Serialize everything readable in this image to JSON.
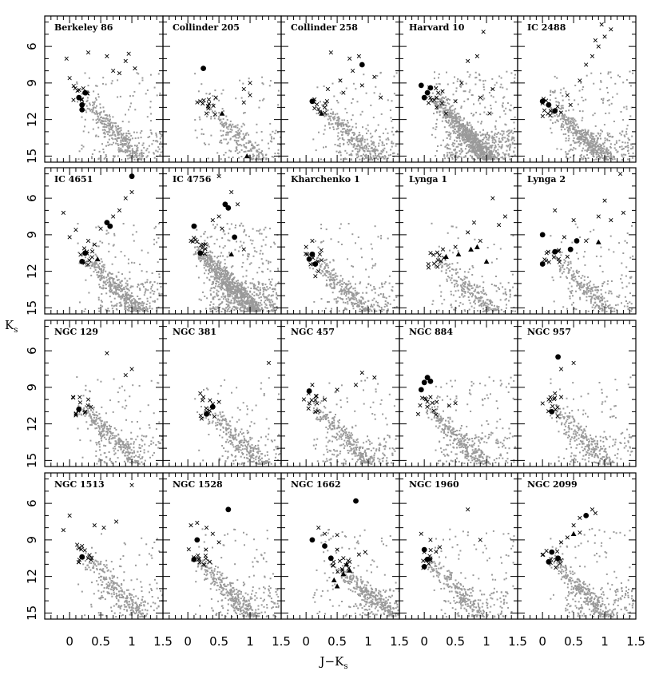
{
  "figure": {
    "xlabel": "J−K",
    "xlabel_sub": "s",
    "ylabel": "K",
    "ylabel_sub": "s"
  },
  "chart_data": {
    "type": "scatter",
    "layout": {
      "rows": 4,
      "cols": 5
    },
    "xlim": [
      -0.4,
      1.5
    ],
    "ylim": [
      15.5,
      3.5
    ],
    "x_ticks": [
      0,
      0.5,
      1,
      1.5
    ],
    "x_tick_labels": [
      "0",
      "0.5",
      "1",
      "1.5"
    ],
    "y_ticks": [
      6,
      9,
      12,
      15
    ],
    "y_tick_labels": [
      "6",
      "9",
      "12",
      "15"
    ],
    "marker_legend": {
      "field": "gray dots",
      "candidates": "crosses",
      "members": "filled circles",
      "giants": "triangles"
    },
    "colors": {
      "field": "#9a9a9a",
      "members": "#000000"
    },
    "panels": [
      {
        "title": "Berkeley 86",
        "field_density": 0.5,
        "turnoff": [
          0.2,
          10.0
        ],
        "members": [
          [
            0.15,
            10.2
          ],
          [
            0.2,
            10.8
          ],
          [
            0.25,
            9.8
          ],
          [
            0.2,
            11.2
          ]
        ],
        "giants": [],
        "crosses": [
          [
            -0.05,
            7.0
          ],
          [
            0.3,
            6.5
          ],
          [
            0.6,
            6.8
          ],
          [
            0.7,
            8.0
          ],
          [
            0.8,
            8.2
          ],
          [
            0.9,
            7.2
          ],
          [
            0.95,
            6.6
          ],
          [
            1.05,
            7.8
          ],
          [
            0.0,
            8.6
          ]
        ]
      },
      {
        "title": "Collinder 205",
        "field_density": 0.35,
        "turnoff": [
          0.3,
          10.8
        ],
        "members": [
          [
            0.25,
            7.8
          ]
        ],
        "giants": [
          [
            0.55,
            11.5
          ],
          [
            0.95,
            15.0
          ]
        ],
        "crosses": [
          [
            0.2,
            10.5
          ],
          [
            0.3,
            11.5
          ],
          [
            0.45,
            10.2
          ],
          [
            0.9,
            9.5
          ],
          [
            1.0,
            10.0
          ],
          [
            1.0,
            9.0
          ],
          [
            0.9,
            10.6
          ]
        ]
      },
      {
        "title": "Collinder 258",
        "field_density": 0.5,
        "turnoff": [
          0.25,
          11.0
        ],
        "members": [
          [
            0.1,
            10.5
          ],
          [
            0.9,
            7.5
          ]
        ],
        "giants": [
          [
            0.25,
            11.5
          ]
        ],
        "crosses": [
          [
            0.4,
            6.5
          ],
          [
            0.55,
            8.8
          ],
          [
            0.6,
            9.8
          ],
          [
            0.7,
            7.0
          ],
          [
            0.75,
            8.0
          ],
          [
            0.85,
            6.8
          ],
          [
            0.9,
            9.2
          ],
          [
            1.1,
            8.5
          ],
          [
            1.2,
            10.2
          ],
          [
            0.35,
            9.5
          ]
        ]
      },
      {
        "title": "Harvard 10",
        "field_density": 1.3,
        "turnoff": [
          0.15,
          10.0
        ],
        "members": [
          [
            -0.05,
            9.2
          ],
          [
            0.05,
            9.8
          ],
          [
            0.1,
            9.4
          ],
          [
            0.0,
            10.2
          ]
        ],
        "giants": [],
        "crosses": [
          [
            0.2,
            11.0
          ],
          [
            0.35,
            11.5
          ],
          [
            0.5,
            10.5
          ],
          [
            0.6,
            9.0
          ],
          [
            0.85,
            6.8
          ],
          [
            0.95,
            4.8
          ],
          [
            1.05,
            11.5
          ],
          [
            0.7,
            7.2
          ],
          [
            0.9,
            10.2
          ],
          [
            1.1,
            9.5
          ]
        ]
      },
      {
        "title": "IC 2488",
        "field_density": 0.7,
        "turnoff": [
          0.15,
          11.0
        ],
        "members": [
          [
            0.0,
            10.5
          ],
          [
            0.1,
            10.8
          ],
          [
            0.2,
            11.3
          ]
        ],
        "giants": [],
        "crosses": [
          [
            0.4,
            10.0
          ],
          [
            0.45,
            10.8
          ],
          [
            0.6,
            8.8
          ],
          [
            0.7,
            7.5
          ],
          [
            0.8,
            6.8
          ],
          [
            0.85,
            5.5
          ],
          [
            0.9,
            6.0
          ],
          [
            1.0,
            5.2
          ],
          [
            1.1,
            4.6
          ],
          [
            0.95,
            4.2
          ]
        ]
      },
      {
        "title": "IC 4651",
        "field_density": 0.6,
        "turnoff": [
          0.25,
          10.8
        ],
        "members": [
          [
            0.2,
            11.2
          ],
          [
            0.25,
            10.5
          ],
          [
            0.6,
            8.0
          ],
          [
            0.65,
            8.3
          ],
          [
            1.0,
            4.2
          ]
        ],
        "giants": [
          [
            0.45,
            11.0
          ]
        ],
        "crosses": [
          [
            -0.1,
            7.2
          ],
          [
            0.0,
            9.2
          ],
          [
            0.1,
            8.6
          ],
          [
            0.4,
            9.8
          ],
          [
            0.5,
            8.5
          ],
          [
            0.7,
            7.5
          ],
          [
            0.8,
            7.0
          ],
          [
            0.9,
            6.0
          ],
          [
            1.0,
            5.5
          ],
          [
            0.3,
            9.5
          ]
        ]
      },
      {
        "title": "IC 4756",
        "field_density": 1.3,
        "turnoff": [
          0.15,
          10.0
        ],
        "members": [
          [
            0.1,
            8.3
          ],
          [
            0.6,
            6.5
          ],
          [
            0.65,
            6.8
          ],
          [
            0.75,
            9.2
          ],
          [
            0.2,
            10.5
          ]
        ],
        "giants": [
          [
            0.7,
            10.6
          ]
        ],
        "crosses": [
          [
            0.05,
            9.5
          ],
          [
            0.25,
            9.8
          ],
          [
            0.4,
            7.8
          ],
          [
            0.5,
            7.5
          ],
          [
            0.55,
            8.5
          ],
          [
            0.7,
            5.5
          ],
          [
            0.8,
            6.5
          ],
          [
            0.5,
            4.2
          ],
          [
            0.9,
            10.2
          ]
        ]
      },
      {
        "title": "Kharchenko 1",
        "field_density": 0.45,
        "turnoff": [
          0.1,
          10.8
        ],
        "members": [
          [
            0.05,
            11.0
          ],
          [
            0.1,
            10.6
          ],
          [
            0.15,
            11.4
          ]
        ],
        "giants": [],
        "crosses": [
          [
            0.0,
            10.0
          ],
          [
            0.1,
            9.5
          ],
          [
            0.2,
            12.0
          ],
          [
            0.15,
            12.4
          ]
        ]
      },
      {
        "title": "Lynga 1",
        "field_density": 0.35,
        "turnoff": [
          0.2,
          11.0
        ],
        "members": [],
        "giants": [
          [
            0.35,
            10.8
          ],
          [
            0.55,
            10.6
          ],
          [
            0.75,
            10.2
          ],
          [
            0.85,
            10.0
          ],
          [
            1.0,
            11.2
          ]
        ],
        "crosses": [
          [
            0.1,
            10.5
          ],
          [
            0.3,
            10.2
          ],
          [
            0.5,
            10.0
          ],
          [
            0.7,
            8.8
          ],
          [
            0.8,
            8.0
          ],
          [
            0.9,
            9.5
          ],
          [
            1.1,
            6.0
          ],
          [
            1.2,
            8.2
          ],
          [
            1.3,
            7.5
          ]
        ]
      },
      {
        "title": "Lynga 2",
        "field_density": 0.35,
        "turnoff": [
          0.15,
          10.5
        ],
        "members": [
          [
            0.0,
            11.4
          ],
          [
            0.0,
            9.0
          ],
          [
            0.2,
            10.4
          ],
          [
            0.45,
            10.2
          ],
          [
            0.55,
            9.5
          ]
        ],
        "giants": [
          [
            0.9,
            9.6
          ]
        ],
        "crosses": [
          [
            0.2,
            7.0
          ],
          [
            0.35,
            9.2
          ],
          [
            0.5,
            7.8
          ],
          [
            0.7,
            9.5
          ],
          [
            0.9,
            7.5
          ],
          [
            1.0,
            6.2
          ],
          [
            1.1,
            7.8
          ],
          [
            1.3,
            7.2
          ],
          [
            1.25,
            4.0
          ],
          [
            0.4,
            10.8
          ]
        ]
      },
      {
        "title": "NGC 129",
        "field_density": 0.45,
        "turnoff": [
          0.2,
          10.5
        ],
        "members": [
          [
            0.15,
            10.8
          ]
        ],
        "giants": [],
        "crosses": [
          [
            0.3,
            10.0
          ],
          [
            0.6,
            6.2
          ],
          [
            0.9,
            8.0
          ],
          [
            1.0,
            7.5
          ],
          [
            0.25,
            11.0
          ],
          [
            0.1,
            11.3
          ]
        ]
      },
      {
        "title": "NGC 381",
        "field_density": 0.4,
        "turnoff": [
          0.3,
          10.8
        ],
        "members": [
          [
            0.3,
            11.2
          ],
          [
            0.4,
            10.6
          ]
        ],
        "giants": [],
        "crosses": [
          [
            0.25,
            9.8
          ],
          [
            0.2,
            9.5
          ],
          [
            0.5,
            10.2
          ],
          [
            1.3,
            7.0
          ]
        ]
      },
      {
        "title": "NGC 457",
        "field_density": 0.45,
        "turnoff": [
          0.1,
          10.2
        ],
        "members": [
          [
            0.05,
            9.3
          ]
        ],
        "giants": [],
        "crosses": [
          [
            0.1,
            8.8
          ],
          [
            0.3,
            10.0
          ],
          [
            0.5,
            9.2
          ],
          [
            0.8,
            8.8
          ],
          [
            0.9,
            7.8
          ],
          [
            1.1,
            8.2
          ],
          [
            0.15,
            11.0
          ]
        ]
      },
      {
        "title": "NGC 884",
        "field_density": 0.5,
        "turnoff": [
          0.05,
          10.5
        ],
        "members": [
          [
            -0.05,
            9.2
          ],
          [
            0.05,
            8.2
          ],
          [
            0.1,
            8.5
          ],
          [
            0.0,
            8.6
          ]
        ],
        "giants": [],
        "crosses": [
          [
            0.1,
            9.8
          ],
          [
            0.2,
            10.2
          ],
          [
            0.4,
            10.5
          ],
          [
            0.5,
            10.3
          ]
        ]
      },
      {
        "title": "NGC 957",
        "field_density": 0.4,
        "turnoff": [
          0.15,
          10.6
        ],
        "members": [
          [
            0.25,
            6.5
          ],
          [
            0.15,
            11.0
          ]
        ],
        "giants": [],
        "crosses": [
          [
            0.3,
            7.5
          ],
          [
            0.5,
            7.0
          ],
          [
            0.3,
            9.8
          ],
          [
            0.2,
            9.5
          ],
          [
            0.1,
            10.0
          ]
        ]
      },
      {
        "title": "NGC 1513",
        "field_density": 0.4,
        "turnoff": [
          0.25,
          10.2
        ],
        "members": [
          [
            0.2,
            10.4
          ]
        ],
        "giants": [],
        "crosses": [
          [
            -0.1,
            8.2
          ],
          [
            0.0,
            7.0
          ],
          [
            0.2,
            9.5
          ],
          [
            0.4,
            7.8
          ],
          [
            0.55,
            8.0
          ],
          [
            0.75,
            7.5
          ],
          [
            0.3,
            10.5
          ],
          [
            1.0,
            4.5
          ]
        ]
      },
      {
        "title": "NGC 1528",
        "field_density": 0.5,
        "turnoff": [
          0.15,
          10.5
        ],
        "members": [
          [
            0.15,
            9.0
          ],
          [
            0.1,
            10.6
          ],
          [
            0.65,
            6.5
          ]
        ],
        "giants": [],
        "crosses": [
          [
            0.05,
            7.8
          ],
          [
            0.15,
            7.6
          ],
          [
            0.3,
            8.0
          ],
          [
            0.4,
            8.5
          ],
          [
            0.5,
            9.2
          ],
          [
            0.35,
            10.8
          ],
          [
            0.25,
            11.0
          ]
        ]
      },
      {
        "title": "NGC 1662",
        "field_density": 0.55,
        "turnoff": [
          0.55,
          11.5
        ],
        "members": [
          [
            0.8,
            5.8
          ],
          [
            0.1,
            9.0
          ],
          [
            0.3,
            9.5
          ],
          [
            0.4,
            10.5
          ]
        ],
        "giants": [
          [
            0.45,
            12.3
          ],
          [
            0.6,
            11.8
          ],
          [
            0.7,
            11.5
          ],
          [
            0.5,
            12.8
          ],
          [
            0.65,
            11.0
          ]
        ],
        "crosses": [
          [
            0.2,
            8.0
          ],
          [
            0.3,
            8.5
          ],
          [
            0.5,
            9.8
          ],
          [
            0.6,
            10.5
          ],
          [
            0.7,
            10.8
          ],
          [
            0.85,
            10.2
          ],
          [
            0.95,
            10.0
          ],
          [
            0.5,
            8.6
          ]
        ]
      },
      {
        "title": "NGC 1960",
        "field_density": 0.4,
        "turnoff": [
          0.05,
          10.5
        ],
        "members": [
          [
            0.0,
            9.8
          ],
          [
            0.05,
            10.6
          ],
          [
            0.0,
            11.2
          ]
        ],
        "giants": [],
        "crosses": [
          [
            -0.05,
            8.5
          ],
          [
            0.1,
            9.0
          ],
          [
            0.25,
            9.6
          ],
          [
            0.7,
            6.5
          ],
          [
            0.9,
            9.0
          ]
        ]
      },
      {
        "title": "NGC 2099",
        "field_density": 0.5,
        "turnoff": [
          0.15,
          10.5
        ],
        "members": [
          [
            0.15,
            10.0
          ],
          [
            0.25,
            10.5
          ],
          [
            0.7,
            7.0
          ],
          [
            0.1,
            10.8
          ]
        ],
        "giants": [
          [
            0.5,
            8.5
          ]
        ],
        "crosses": [
          [
            0.3,
            9.2
          ],
          [
            0.4,
            8.8
          ],
          [
            0.5,
            7.8
          ],
          [
            0.6,
            7.2
          ],
          [
            0.8,
            6.5
          ],
          [
            0.85,
            6.8
          ],
          [
            0.6,
            8.4
          ]
        ]
      }
    ]
  }
}
